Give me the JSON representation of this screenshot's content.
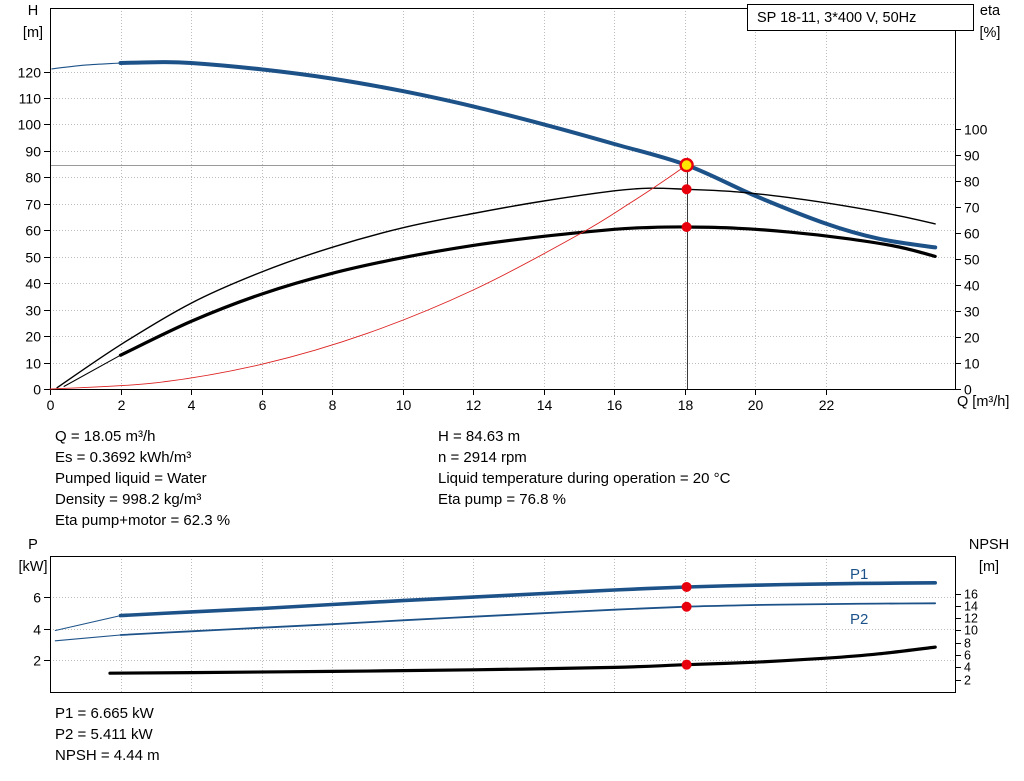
{
  "header": {
    "title": "SP 18-11, 3*400 V, 50Hz"
  },
  "axis_titles": {
    "top_left_1": "H",
    "top_left_2": "[m]",
    "top_right_1": "eta",
    "top_right_2": "[%]",
    "x": "Q [m³/h]",
    "bottom_left_1": "P",
    "bottom_left_2": "[kW]",
    "bottom_right_1": "NPSH",
    "bottom_right_2": "[m]"
  },
  "curve_labels": {
    "p1": "P1",
    "p2": "P2"
  },
  "info": {
    "left": [
      "Q = 18.05 m³/h",
      "Es = 0.3692 kWh/m³",
      "Pumped liquid = Water",
      "Density = 998.2 kg/m³",
      "Eta pump+motor = 62.3 %"
    ],
    "right": [
      "H = 84.63 m",
      "n = 2914 rpm",
      "Liquid temperature during operation = 20 °C",
      "Eta pump = 76.8 %"
    ]
  },
  "results": [
    "P1 = 6.665 kW",
    "P2 = 5.411 kW",
    "NPSH = 4.44 m"
  ],
  "colors": {
    "curve_blue": "#1d5289",
    "curve_red": "#dd2222",
    "marker_red": "#e8000d",
    "duty_yellow": "#ffe600",
    "guide_gray": "#9a9a9a"
  },
  "chart_data": [
    {
      "type": "line",
      "title": "SP 18-11, 3*400 V, 50Hz",
      "xlabel": "Q [m³/h]",
      "ylabel_left": "H [m]",
      "ylabel_right": "eta [%]",
      "xlim": [
        0,
        25.66
      ],
      "ylim_left": [
        0,
        144
      ],
      "ylim_right": [
        0,
        146.5
      ],
      "x_ticks": [
        0,
        2,
        4,
        6,
        8,
        10,
        12,
        14,
        16,
        18,
        20,
        22
      ],
      "y_ticks_left": [
        0,
        10,
        20,
        30,
        40,
        50,
        60,
        70,
        80,
        90,
        100,
        110,
        120
      ],
      "y_ticks_right": [
        0,
        10,
        20,
        30,
        40,
        50,
        60,
        70,
        80,
        90,
        100
      ],
      "grid": true,
      "series": [
        {
          "name": "head-curve",
          "legend": "H",
          "axis": "left",
          "color": "#1d5289",
          "width": 4,
          "lead_thin_until": 2,
          "x": [
            0.05,
            1,
            2,
            3,
            4,
            6,
            8,
            10,
            12,
            14,
            16,
            18.05,
            20,
            22,
            23.5,
            25.1
          ],
          "y": [
            121,
            122.4,
            123.2,
            123.5,
            123.2,
            120.8,
            117.3,
            112.6,
            106.8,
            100,
            92.6,
            84.63,
            73,
            62.5,
            56.8,
            53.5
          ]
        },
        {
          "name": "eta-pump-curve",
          "legend": "Eta pump",
          "axis": "right",
          "color": "#000000",
          "width": 1.4,
          "x": [
            0.2,
            2,
            4,
            6,
            8,
            10,
            12,
            14,
            16,
            17,
            18.05,
            19.5,
            21,
            22.5,
            24,
            25.1
          ],
          "y": [
            0.5,
            17,
            33,
            45,
            54.5,
            62,
            67.5,
            72.3,
            76.2,
            77.2,
            76.8,
            75.8,
            73.5,
            70.5,
            66.8,
            63.5
          ]
        },
        {
          "name": "eta-pump-motor-curve",
          "legend": "Eta pump+motor",
          "axis": "right",
          "color": "#000000",
          "width": 3.2,
          "lead_thin_until": 2,
          "x": [
            0.4,
            2,
            4,
            6,
            8,
            10,
            12,
            14,
            16,
            17,
            18.05,
            19.5,
            21,
            22.5,
            24,
            25.1
          ],
          "y": [
            1,
            13,
            26,
            36.5,
            44.5,
            50.5,
            55.2,
            58.7,
            61.4,
            62.1,
            62.3,
            61.8,
            60.3,
            58,
            54.8,
            51
          ]
        },
        {
          "name": "system-curve",
          "legend": "System",
          "axis": "left",
          "color": "#dd2222",
          "width": 0.9,
          "x": [
            0,
            3,
            6,
            9,
            12,
            15,
            16.5,
            17.5,
            18.05
          ],
          "y": [
            0,
            2.34,
            9.35,
            21.05,
            37.4,
            58.44,
            70.73,
            79.52,
            84.63
          ]
        }
      ],
      "guides": [
        {
          "type": "h",
          "axis": "left",
          "value": 84.63,
          "color": "#9a9a9a",
          "width": 1
        },
        {
          "type": "v",
          "axis": "left",
          "x": 18.05,
          "from": 0,
          "to": 87.5,
          "color": "#3a3a3a",
          "width": 1
        }
      ],
      "markers": [
        {
          "x": 18.05,
          "value": 76.8,
          "axis": "right",
          "style": "dot",
          "color": "#e8000d",
          "r": 5
        },
        {
          "x": 18.05,
          "value": 62.3,
          "axis": "right",
          "style": "dot",
          "color": "#e8000d",
          "r": 5
        },
        {
          "x": 18.05,
          "value": 84.63,
          "axis": "left",
          "style": "duty",
          "fill": "#ffe600",
          "stroke": "#e8000d",
          "r": 6
        }
      ],
      "duty_point": {
        "Q": 18.05,
        "H": 84.63,
        "eta_pump": 76.8,
        "eta_pump_motor": 62.3
      }
    },
    {
      "type": "line",
      "title": "",
      "xlabel": "",
      "ylabel_left": "P [kW]",
      "ylabel_right": "NPSH [m]",
      "xlim": [
        0,
        25.66
      ],
      "ylim_left": [
        0,
        8.63
      ],
      "ylim_right": [
        0,
        22.1
      ],
      "x_ticks": [
        0,
        2,
        4,
        6,
        8,
        10,
        12,
        14,
        16,
        18,
        20,
        22
      ],
      "y_ticks_left": [
        2,
        4,
        6
      ],
      "y_ticks_right": [
        2,
        4,
        6,
        8,
        10,
        12,
        14,
        16
      ],
      "grid": true,
      "series": [
        {
          "name": "p1-curve",
          "legend": "P1",
          "axis": "left",
          "color": "#1d5289",
          "width": 3.6,
          "lead_thin_until": 1.9,
          "x": [
            0.15,
            2,
            4,
            6,
            8,
            10,
            12,
            14,
            16,
            18.05,
            20,
            22,
            23.5,
            25.1
          ],
          "y": [
            3.9,
            4.85,
            5.08,
            5.3,
            5.55,
            5.8,
            6.02,
            6.25,
            6.47,
            6.665,
            6.78,
            6.86,
            6.9,
            6.93
          ]
        },
        {
          "name": "p2-curve",
          "legend": "P2",
          "axis": "left",
          "color": "#1d5289",
          "width": 1.8,
          "lead_thin_until": 1.9,
          "x": [
            0.15,
            2,
            4,
            6,
            8,
            10,
            12,
            14,
            16,
            18.05,
            20,
            22,
            23.5,
            25.1
          ],
          "y": [
            3.25,
            3.62,
            3.85,
            4.08,
            4.3,
            4.55,
            4.78,
            5.0,
            5.22,
            5.411,
            5.52,
            5.58,
            5.61,
            5.63
          ]
        },
        {
          "name": "npsh-curve",
          "legend": "NPSH",
          "axis": "right",
          "color": "#000000",
          "width": 3.2,
          "x": [
            1.7,
            4,
            8,
            12,
            16,
            18.05,
            20,
            22,
            23.5,
            25.1
          ],
          "y": [
            3.05,
            3.15,
            3.35,
            3.6,
            4.0,
            4.44,
            4.85,
            5.5,
            6.2,
            7.3
          ]
        }
      ],
      "guides": [],
      "markers": [
        {
          "x": 18.05,
          "value": 6.665,
          "axis": "left",
          "style": "dot",
          "color": "#e8000d",
          "r": 5
        },
        {
          "x": 18.05,
          "value": 5.411,
          "axis": "left",
          "style": "dot",
          "color": "#e8000d",
          "r": 5
        },
        {
          "x": 18.05,
          "value": 4.44,
          "axis": "right",
          "style": "dot",
          "color": "#e8000d",
          "r": 5
        }
      ],
      "duty_point": {
        "Q": 18.05,
        "P1": 6.665,
        "P2": 5.411,
        "NPSH": 4.44
      }
    }
  ]
}
